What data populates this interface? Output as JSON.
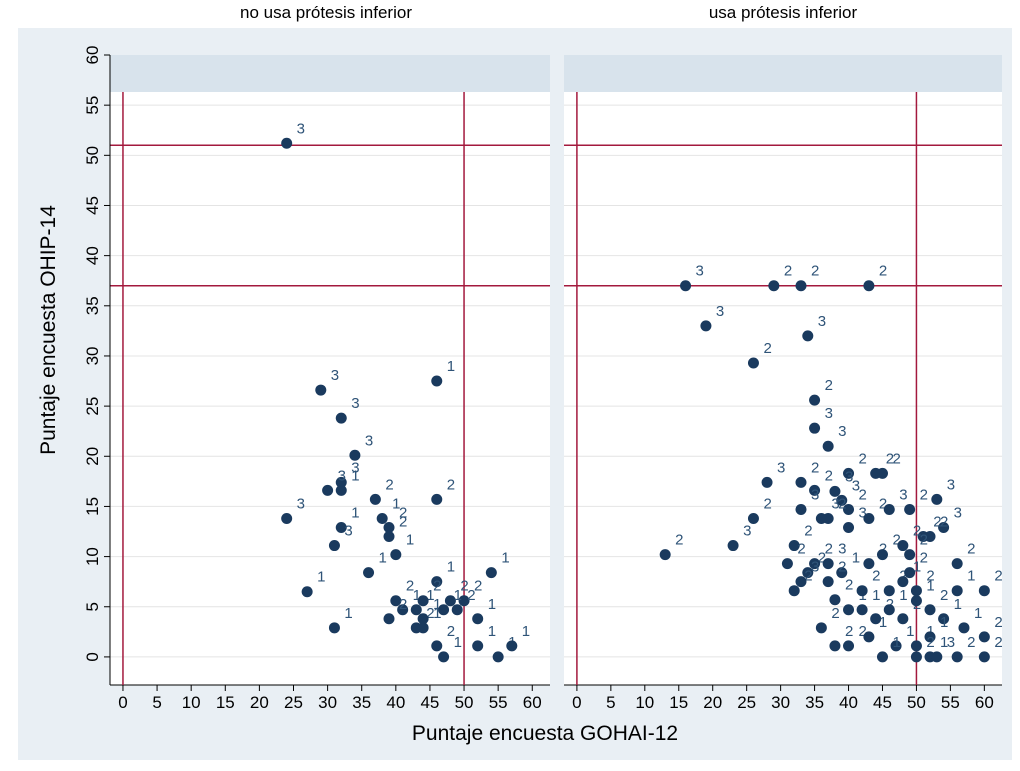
{
  "chart_data": {
    "type": "scatter",
    "y_label": "Puntaje encuesta OHIP-14",
    "x_label": "Puntaje encuesta GOHAI-12",
    "xlim": [
      -1.9,
      62.6
    ],
    "ylim": [
      -2.8,
      60
    ],
    "xticks": [
      0,
      5,
      10,
      15,
      20,
      25,
      30,
      35,
      40,
      45,
      50,
      55,
      60
    ],
    "yticks": [
      0,
      5,
      10,
      15,
      20,
      25,
      30,
      35,
      40,
      45,
      50,
      55,
      60
    ],
    "grid": true,
    "hlines": [
      37,
      51
    ],
    "vlines": [
      0,
      50
    ],
    "line_color": "#a3193d",
    "marker_color": "#1a3a5e",
    "label_color": "#2f5478",
    "panels": [
      {
        "title": "no usa prótesis inferior",
        "x": [
          24,
          29,
          32,
          34,
          32,
          30,
          32,
          37,
          24,
          38,
          39,
          32,
          39,
          31,
          40,
          36,
          46,
          46,
          46,
          50,
          54,
          27,
          40,
          41,
          43,
          44,
          43,
          44,
          48,
          49,
          47,
          52,
          52,
          31,
          39,
          46,
          47,
          55,
          57,
          44
        ],
        "y": [
          51.2,
          26.6,
          23.8,
          20.1,
          17.4,
          16.6,
          16.6,
          15.7,
          13.8,
          13.8,
          12.9,
          12.9,
          12,
          11.1,
          10.2,
          8.4,
          27.5,
          15.7,
          7.5,
          5.6,
          8.4,
          6.5,
          5.6,
          4.7,
          4.7,
          5.6,
          2.9,
          3.8,
          5.6,
          4.7,
          4.7,
          3.8,
          1.1,
          2.9,
          3.8,
          1.1,
          0,
          0,
          1.1,
          2.9
        ],
        "marker_labels": [
          "3",
          "3",
          "3",
          "3",
          "3",
          "3",
          "1",
          "2",
          "3",
          "1",
          "2",
          "1",
          "2",
          "3",
          "1",
          "1",
          "1",
          "2",
          "1",
          "2",
          "1",
          "1",
          "2",
          "1",
          "1",
          "2",
          "2",
          "1",
          "2",
          "2",
          "1",
          "1",
          "1",
          "1",
          "2",
          "2",
          "1",
          "1",
          "1",
          "1"
        ]
      },
      {
        "title": "usa prótesis inferior",
        "x": [
          16,
          29,
          33,
          43,
          19,
          34,
          26,
          35,
          35,
          37,
          33,
          40,
          44,
          45,
          28,
          35,
          39,
          26,
          13,
          23,
          33,
          38,
          40,
          32,
          36,
          37,
          40,
          43,
          46,
          49,
          53,
          54,
          51,
          52,
          56,
          60,
          60,
          60,
          56,
          57,
          31,
          34,
          35,
          37,
          39,
          43,
          45,
          48,
          49,
          38,
          40,
          42,
          44,
          46,
          48,
          50,
          52,
          54,
          36,
          38,
          40,
          43,
          47,
          50,
          52,
          45,
          50,
          52,
          56,
          53,
          32,
          33,
          42,
          46,
          48,
          50,
          37,
          49
        ],
        "y": [
          37,
          37,
          37,
          37,
          33,
          32,
          29.3,
          25.6,
          22.8,
          21,
          17.4,
          18.3,
          18.3,
          18.3,
          17.4,
          16.6,
          15.6,
          13.8,
          10.2,
          11.1,
          14.7,
          16.5,
          14.7,
          11.1,
          13.8,
          13.8,
          12.9,
          13.8,
          14.7,
          14.7,
          15.7,
          12.9,
          12,
          12,
          9.3,
          6.6,
          2,
          0,
          6.6,
          2.9,
          9.3,
          8.4,
          9.3,
          9.3,
          8.4,
          9.3,
          10.2,
          11.1,
          10.2,
          5.7,
          4.7,
          4.7,
          3.8,
          4.7,
          3.8,
          5.6,
          4.7,
          3.8,
          2.9,
          1.1,
          1.1,
          2,
          1.1,
          1.1,
          2,
          0,
          0,
          0,
          0,
          0,
          6.6,
          7.5,
          6.6,
          6.6,
          7.5,
          6.6,
          7.5,
          8.4
        ],
        "marker_labels": [
          "3",
          "2",
          "2",
          "2",
          "3",
          "3",
          "2",
          "2",
          "3",
          "3",
          "2",
          "2",
          "2",
          "2",
          "3",
          "2",
          "3",
          "2",
          "2",
          "3",
          "3",
          "3",
          "2",
          "2",
          "3",
          "2",
          "3",
          "2",
          "3",
          "2",
          "3",
          "3",
          "2",
          "2",
          "2",
          "2",
          "2",
          "2",
          "1",
          "1",
          "2",
          "2",
          "2",
          "3",
          "1",
          "2",
          "2",
          "2",
          "2",
          "2",
          "1",
          "1",
          "2",
          "1",
          "2",
          "1",
          "2",
          "1",
          "2",
          "2",
          "2",
          "1",
          "1",
          "1",
          "1",
          "1",
          "2",
          "1",
          "2",
          "3",
          "2",
          "3",
          "2",
          "2",
          "1",
          "2",
          "2",
          "2"
        ]
      }
    ]
  }
}
